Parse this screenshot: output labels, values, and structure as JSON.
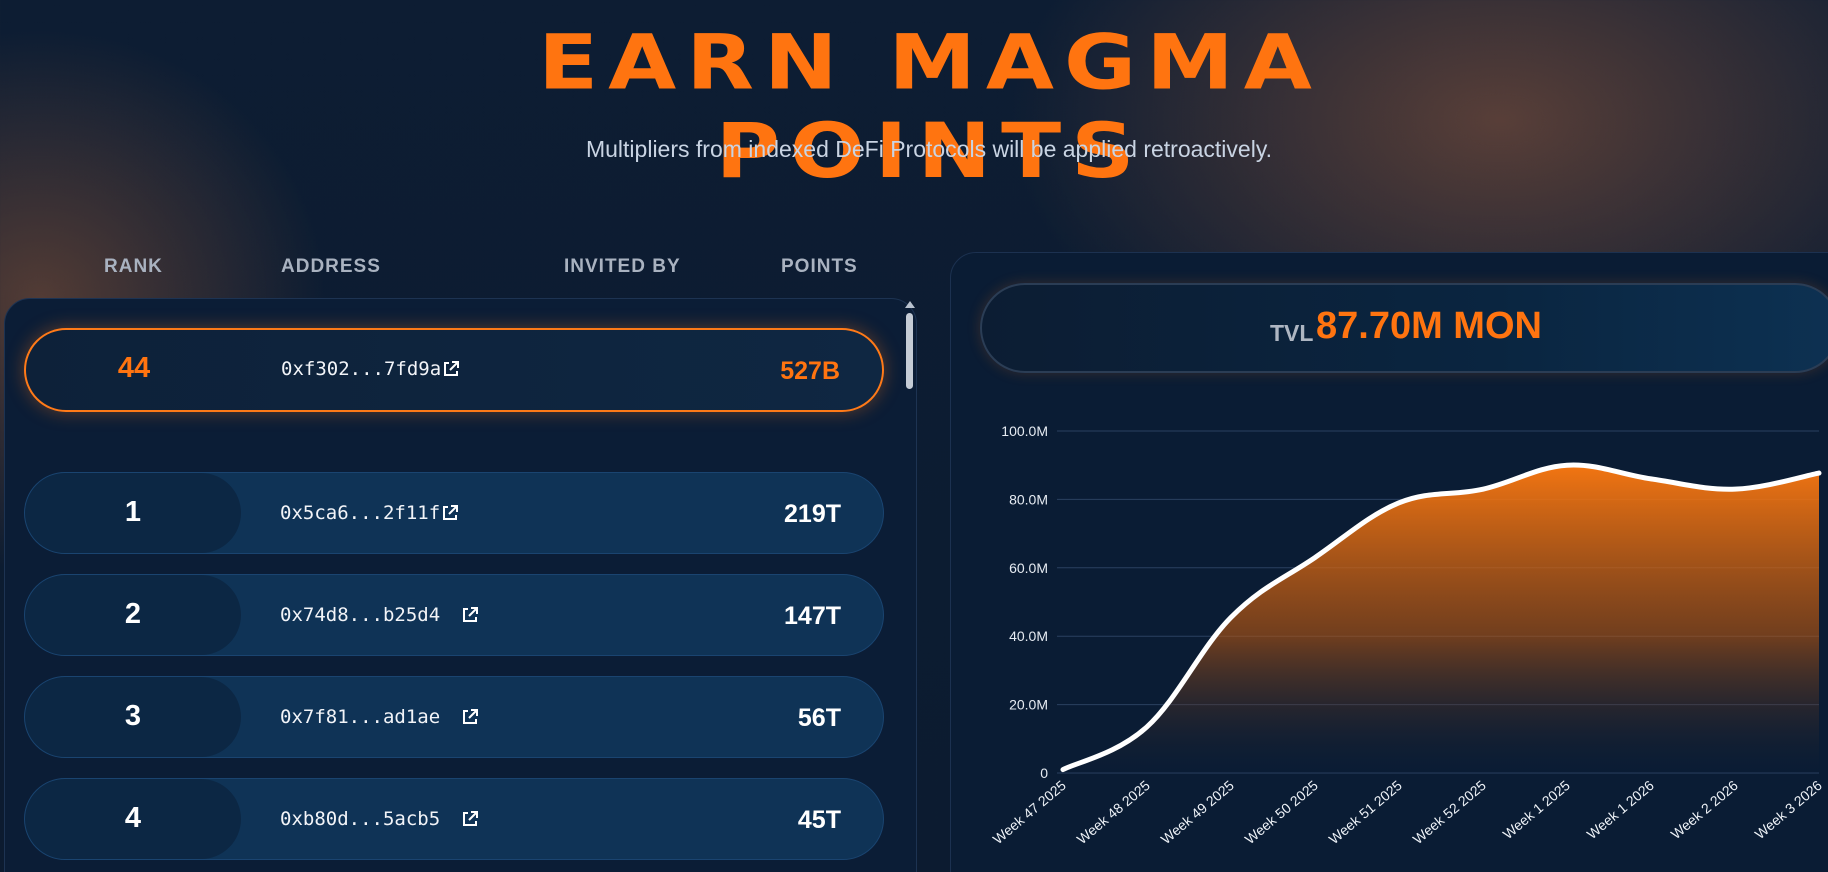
{
  "header": {
    "title": "EARN MAGMA POINTS",
    "subtitle": "Multipliers from indexed DeFi Protocols will be applied retroactively."
  },
  "leaderboard": {
    "columns": [
      "RANK",
      "ADDRESS",
      "INVITED BY",
      "POINTS"
    ],
    "current_user": {
      "rank": "44",
      "address": "0xf302...7fd9a",
      "points": "527B"
    },
    "rows": [
      {
        "rank": "1",
        "address": "0x5ca6...2f11f",
        "points": "219T"
      },
      {
        "rank": "2",
        "address": "0x74d8...b25d4",
        "points": "147T"
      },
      {
        "rank": "3",
        "address": "0x7f81...ad1ae",
        "points": "56T"
      },
      {
        "rank": "4",
        "address": "0xb80d...5acb5",
        "points": "45T"
      }
    ],
    "icons": {
      "address_link": "external-link-icon"
    }
  },
  "tvl": {
    "label": "TVL",
    "value": "87.70M MON"
  },
  "chart_data": {
    "type": "area",
    "title": "",
    "xlabel": "",
    "ylabel": "",
    "categories": [
      "Week 47 2025",
      "Week 48 2025",
      "Week 49 2025",
      "Week 50 2025",
      "Week 51 2025",
      "Week 52 2025",
      "Week 1 2025",
      "Week 1 2026",
      "Week 2 2026",
      "Week 3 2026"
    ],
    "values": [
      1.0,
      13.5,
      45.5,
      63.0,
      79.0,
      83.0,
      90.0,
      86.0,
      83.0,
      87.7
    ],
    "ylim": [
      0,
      100
    ],
    "yticks": [
      "0",
      "20.0M",
      "40.0M",
      "60.0M",
      "80.0M",
      "100.0M"
    ],
    "grid": true,
    "colors": {
      "line": "#ffffff",
      "fill_top": "#ff7a10",
      "fill_bottom": "#0a1c34",
      "grid": "#2a4060"
    }
  },
  "colors": {
    "accent": "#ff7410",
    "row_bg": "#0f3356",
    "panel_bg": "#0b1d36"
  }
}
